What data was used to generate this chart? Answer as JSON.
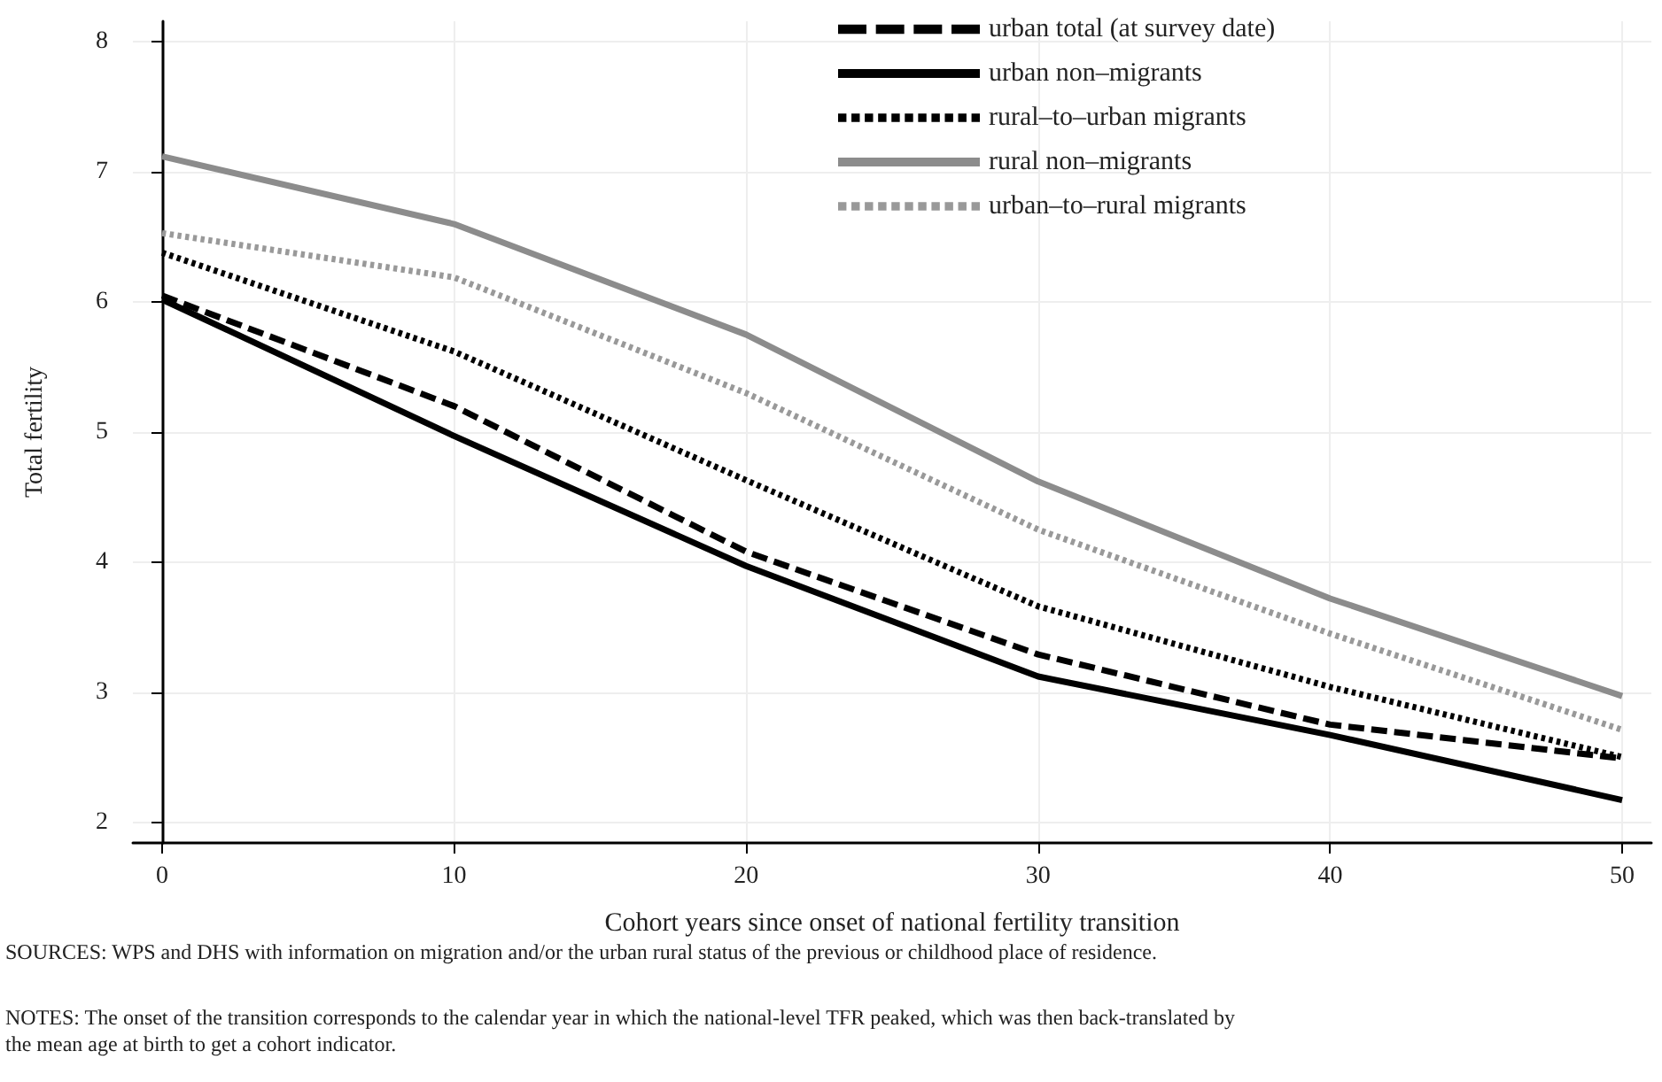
{
  "chart_data": {
    "type": "line",
    "xlabel": "Cohort years since onset of national fertility transition",
    "ylabel": "Total fertility",
    "x": [
      0,
      10,
      20,
      30,
      40,
      50
    ],
    "series": [
      {
        "name": "urban total (at survey date)",
        "color": "#000000",
        "line_style": "dashed",
        "values": [
          6.05,
          5.2,
          4.08,
          3.29,
          2.75,
          2.49
        ]
      },
      {
        "name": "urban non–migrants",
        "color": "#000000",
        "line_style": "solid",
        "values": [
          6.02,
          4.97,
          3.97,
          3.12,
          2.67,
          2.17
        ]
      },
      {
        "name": "rural–to–urban migrants",
        "color": "#000000",
        "line_style": "dotted",
        "values": [
          6.38,
          5.62,
          4.63,
          3.66,
          3.04,
          2.5
        ]
      },
      {
        "name": "rural non–migrants",
        "color": "#8c8c8c",
        "line_style": "solid",
        "values": [
          7.12,
          6.6,
          5.75,
          4.62,
          3.72,
          2.97
        ]
      },
      {
        "name": "urban–to–rural migrants",
        "color": "#999999",
        "line_style": "dotted",
        "values": [
          6.53,
          6.19,
          5.3,
          4.25,
          3.45,
          2.71
        ]
      }
    ],
    "xlim": [
      -1,
      51
    ],
    "xticks": [
      0,
      10,
      20,
      30,
      40,
      50
    ],
    "ylim": [
      1.84,
      8.16
    ],
    "yticks": [
      2,
      3,
      4,
      5,
      6,
      7,
      8
    ],
    "grid": true,
    "legend": "top right",
    "marker": "none",
    "annotations": [
      "SOURCES: WPS and DHS with information on migration and/or the urban rural status of the previous or childhood place of residence.",
      "NOTES: The onset of the transition corresponds to the calendar year in which the national-level TFR peaked, which was then back-translated by the mean age at birth to get a cohort indicator."
    ]
  }
}
